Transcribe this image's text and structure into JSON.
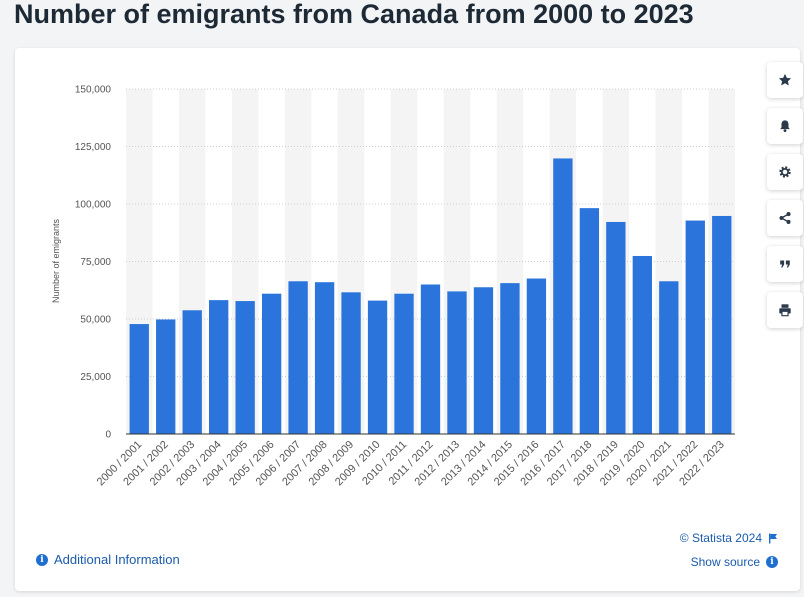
{
  "page": {
    "title": "Number of emigrants from Canada from 2000 to 2023"
  },
  "colors": {
    "bar": "#2a74db",
    "band": "#f4f4f4",
    "grid": "#c9cfd6",
    "axis_text": "#555555",
    "link": "#1a5bab"
  },
  "toolbar": {
    "items": [
      {
        "name": "favorite",
        "icon": "star-icon"
      },
      {
        "name": "notification",
        "icon": "bell-icon"
      },
      {
        "name": "settings",
        "icon": "gear-icon"
      },
      {
        "name": "share",
        "icon": "share-icon"
      },
      {
        "name": "cite",
        "icon": "quote-icon"
      },
      {
        "name": "print",
        "icon": "printer-icon"
      }
    ]
  },
  "footer": {
    "additional_info": "Additional Information",
    "copyright": "© Statista 2024",
    "show_source": "Show source"
  },
  "chart_data": {
    "type": "bar",
    "title": "",
    "xlabel": "",
    "ylabel": "Number of emigrants",
    "ylim": [
      0,
      150000
    ],
    "yticks": [
      0,
      25000,
      50000,
      75000,
      100000,
      125000,
      150000
    ],
    "ytick_labels": [
      "0",
      "25,000",
      "50,000",
      "75,000",
      "100,000",
      "125,000",
      "150,000"
    ],
    "grid": true,
    "categories": [
      "2000 / 2001",
      "2001 / 2002",
      "2002 / 2003",
      "2003 / 2004",
      "2004 / 2005",
      "2005 / 2006",
      "2006 / 2007",
      "2007 / 2008",
      "2008 / 2009",
      "2009 / 2010",
      "2010 / 2011",
      "2011 / 2012",
      "2012 / 2013",
      "2013 / 2014",
      "2014 / 2015",
      "2015 / 2016",
      "2016 / 2017",
      "2017 / 2018",
      "2018 / 2019",
      "2019 / 2020",
      "2020 / 2021",
      "2021 / 2022",
      "2022 / 2023"
    ],
    "values": [
      47800,
      49800,
      53800,
      58200,
      57800,
      61000,
      66400,
      66000,
      61600,
      58000,
      61000,
      65000,
      62000,
      63800,
      65600,
      67600,
      119800,
      98200,
      92200,
      77400,
      66400,
      92800,
      94800
    ]
  }
}
